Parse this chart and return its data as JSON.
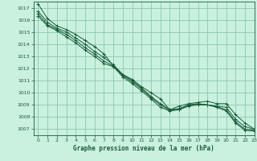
{
  "title": "Graphe pression niveau de la mer (hPa)",
  "bg_color": "#caf0e0",
  "grid_color": "#88ccaa",
  "line_color": "#1a5c38",
  "marker": "+",
  "xlim": [
    -0.5,
    23
  ],
  "ylim": [
    1006.5,
    1017.5
  ],
  "xticks": [
    0,
    1,
    2,
    3,
    4,
    5,
    6,
    7,
    8,
    9,
    10,
    11,
    12,
    13,
    14,
    15,
    16,
    17,
    18,
    19,
    20,
    21,
    22,
    23
  ],
  "yticks": [
    1007,
    1008,
    1009,
    1010,
    1011,
    1012,
    1013,
    1014,
    1015,
    1016,
    1017
  ],
  "series": [
    [
      1017.3,
      1016.1,
      1015.5,
      1015.2,
      1014.8,
      1014.3,
      1013.8,
      1013.2,
      1012.2,
      1011.5,
      1011.1,
      1010.5,
      1010.0,
      1009.5,
      1008.6,
      1008.9,
      1009.1,
      1009.2,
      1009.3,
      1009.1,
      1009.1,
      1008.2,
      1007.5,
      1007.0
    ],
    [
      1016.7,
      1015.8,
      1015.3,
      1015.0,
      1014.5,
      1014.0,
      1013.4,
      1012.9,
      1012.3,
      1011.5,
      1011.0,
      1010.4,
      1009.7,
      1009.1,
      1008.6,
      1008.7,
      1009.0,
      1009.1,
      1009.0,
      1008.9,
      1008.8,
      1007.8,
      1007.2,
      1007.0
    ],
    [
      1016.5,
      1015.6,
      1015.2,
      1014.8,
      1014.3,
      1013.7,
      1013.2,
      1012.6,
      1012.2,
      1011.4,
      1010.9,
      1010.3,
      1009.6,
      1009.0,
      1008.55,
      1008.65,
      1008.95,
      1009.05,
      1009.0,
      1008.85,
      1008.6,
      1007.6,
      1007.0,
      1006.9
    ],
    [
      1016.3,
      1015.5,
      1015.1,
      1014.6,
      1014.1,
      1013.5,
      1013.0,
      1012.4,
      1012.15,
      1011.3,
      1010.75,
      1010.15,
      1009.5,
      1008.8,
      1008.5,
      1008.6,
      1008.9,
      1009.0,
      1009.0,
      1008.8,
      1008.5,
      1007.5,
      1006.9,
      1006.85
    ]
  ]
}
